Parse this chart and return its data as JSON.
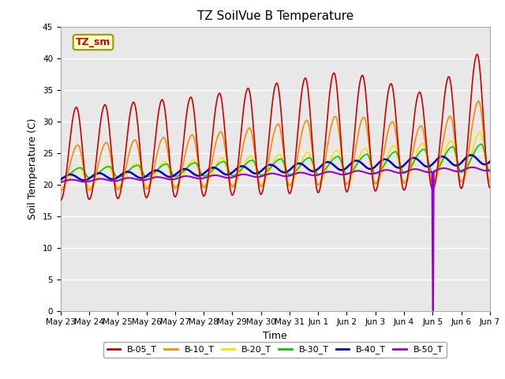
{
  "title": "TZ SoilVue B Temperature",
  "xlabel": "Time",
  "ylabel": "Soil Temperature (C)",
  "ylim": [
    0,
    45
  ],
  "yticks": [
    0,
    5,
    10,
    15,
    20,
    25,
    30,
    35,
    40,
    45
  ],
  "x_labels": [
    "May 23",
    "May 24",
    "May 25",
    "May 26",
    "May 27",
    "May 28",
    "May 29",
    "May 30",
    "May 31",
    "Jun 1",
    "Jun 2",
    "Jun 3",
    "Jun 4",
    "Jun 5",
    "Jun 6",
    "Jun 7"
  ],
  "annotation_label": "TZ_sm",
  "annotation_color": "#cc0000",
  "annotation_bg": "#ffffcc",
  "annotation_border": "#999900",
  "series_colors": [
    "#cc0000",
    "#ff8800",
    "#ffdd00",
    "#00cc00",
    "#0000cc",
    "#9900cc"
  ],
  "series_names": [
    "B-05_T",
    "B-10_T",
    "B-20_T",
    "B-30_T",
    "B-40_T",
    "B-50_T"
  ],
  "series_linewidths": [
    1.2,
    1.2,
    1.2,
    1.2,
    1.8,
    1.5
  ],
  "bg_color": "#e8e8e8",
  "grid_color": "#ffffff"
}
